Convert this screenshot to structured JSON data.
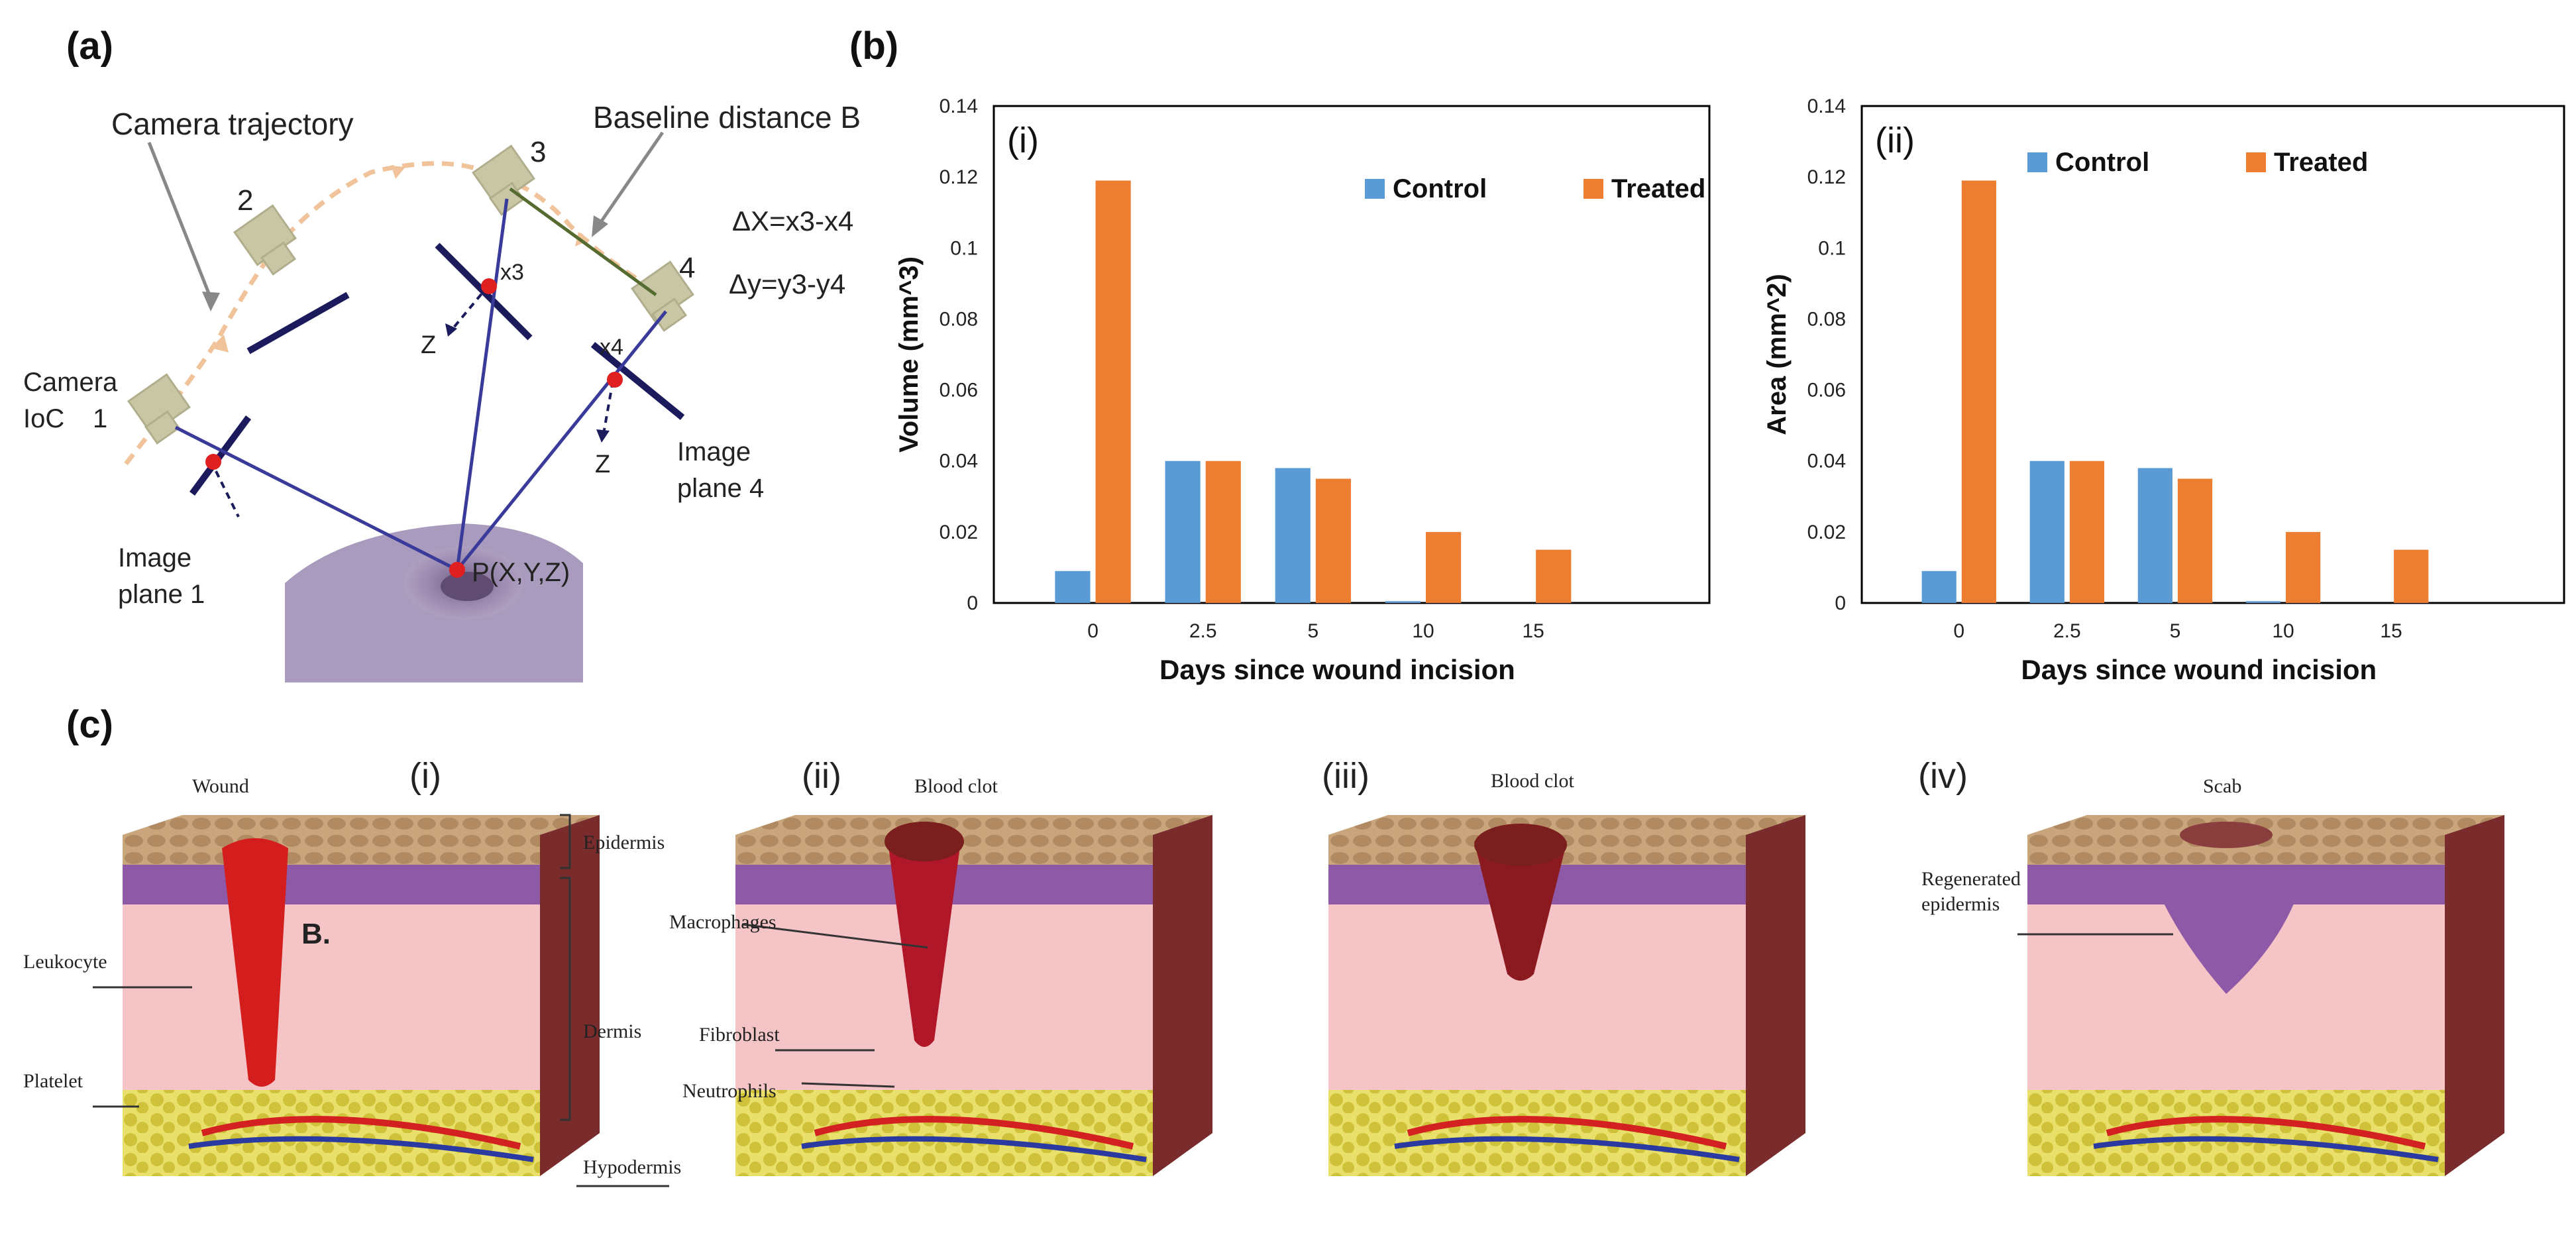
{
  "panel_labels": {
    "a": "(a)",
    "b": "(b)",
    "c": "(c)"
  },
  "panel_a": {
    "camera_trajectory": "Camera trajectory",
    "baseline_distance": "Baseline distance B",
    "camera_loc": "Camera",
    "camera_loc2": "IoC",
    "cam1": "1",
    "cam2": "2",
    "cam3": "3",
    "cam4": "4",
    "delta_x": "ΔX=x3-x4",
    "delta_y": "Δy=y3-y4",
    "x3": "x3",
    "x4": "x4",
    "z1": "Z",
    "z2": "Z",
    "image_plane_1a": "Image",
    "image_plane_1b": "plane 1",
    "image_plane_4a": "Image",
    "image_plane_4b": "plane 4",
    "point": "P(X,Y,Z)"
  },
  "chart_data": [
    {
      "type": "bar",
      "panel": "(i)",
      "categories": [
        "0",
        "2.5",
        "5",
        "10",
        "15"
      ],
      "series": [
        {
          "name": "Control",
          "color": "#5b9bd5",
          "values": [
            0.009,
            0.04,
            0.038,
            0.0005,
            0.0
          ]
        },
        {
          "name": "Treated",
          "color": "#ed7d31",
          "values": [
            0.119,
            0.04,
            0.035,
            0.02,
            0.015
          ]
        }
      ],
      "ylabel": "Volume  (mm^3)",
      "xlabel": "Days since wound incision",
      "ylim": [
        0,
        0.14
      ],
      "yticks": [
        "0",
        "0.02",
        "0.04",
        "0.06",
        "0.08",
        "0.1",
        "0.12",
        "0.14"
      ],
      "legend": "top-right"
    },
    {
      "type": "bar",
      "panel": "(ii)",
      "categories": [
        "0",
        "2.5",
        "5",
        "10",
        "15"
      ],
      "series": [
        {
          "name": "Control",
          "color": "#5b9bd5",
          "values": [
            0.009,
            0.04,
            0.038,
            0.0005,
            0.0
          ]
        },
        {
          "name": "Treated",
          "color": "#ed7d31",
          "values": [
            0.119,
            0.04,
            0.035,
            0.02,
            0.015
          ]
        }
      ],
      "ylabel": "Area (mm^2)",
      "xlabel": "Days since wound incision",
      "ylim": [
        0,
        0.14
      ],
      "yticks": [
        "0",
        "0.02",
        "0.04",
        "0.06",
        "0.08",
        "0.1",
        "0.12",
        "0.14"
      ],
      "legend": "top"
    }
  ],
  "panel_c": {
    "stages": [
      "(i)",
      "(ii)",
      "(iii)",
      "(iv)"
    ],
    "stage1": {
      "wound": "Wound",
      "b_mark": "B.",
      "leukocyte": "Leukocyte",
      "platelet": "Platelet",
      "epidermis": "Epidermis",
      "dermis": "Dermis",
      "hypodermis": "Hypodermis"
    },
    "stage2": {
      "blood_clot": "Blood clot",
      "macrophages": "Macrophages",
      "fibroblast": "Fibroblast",
      "neutrophils": "Neutrophils"
    },
    "stage3": {
      "blood_clot": "Blood clot"
    },
    "stage4": {
      "scab": "Scab",
      "regenerated_1": "Regenerated",
      "regenerated_2": "epidermis"
    }
  }
}
